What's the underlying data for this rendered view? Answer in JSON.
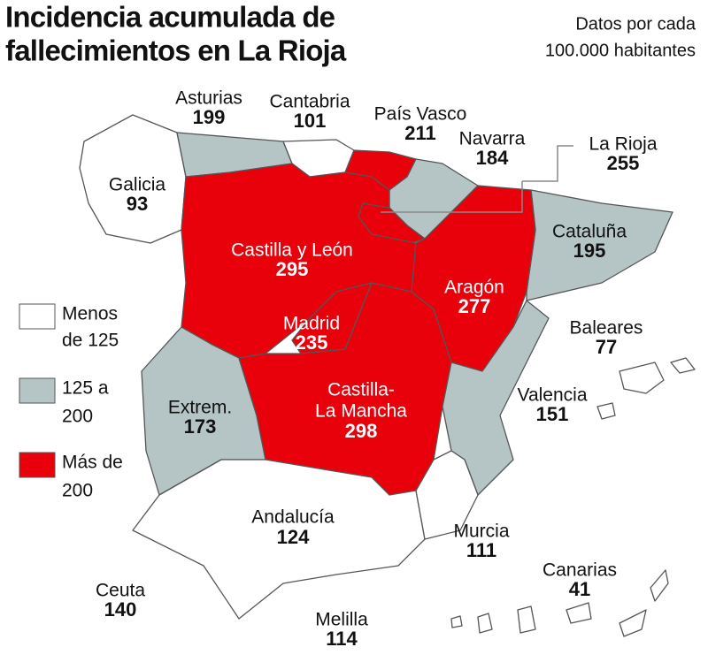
{
  "title": [
    "Incidencia acumulada de",
    "fallecimientos  en La Rioja"
  ],
  "subtitle": [
    "Datos por cada",
    "100.000 habitantes"
  ],
  "legend": [
    {
      "lines": [
        "Menos",
        "de 125"
      ],
      "color": "#ffffff"
    },
    {
      "lines": [
        "125 a",
        "200"
      ],
      "color": "#b5c5c5"
    },
    {
      "lines": [
        "Más de",
        "200"
      ],
      "color": "#e8000b"
    }
  ],
  "regions": [
    {
      "name": "Galicia",
      "value": 93,
      "color": "#ffffff"
    },
    {
      "name": "Asturias",
      "value": 199,
      "color": "#b5c5c5"
    },
    {
      "name": "Cantabria",
      "value": 101,
      "color": "#ffffff"
    },
    {
      "name": "País Vasco",
      "value": 211,
      "color": "#e8000b"
    },
    {
      "name": "Navarra",
      "value": 184,
      "color": "#b5c5c5"
    },
    {
      "name": "La Rioja",
      "value": 255,
      "color": "#e8000b"
    },
    {
      "name": "Castilla y León",
      "value": 295,
      "color": "#e8000b"
    },
    {
      "name": "Cataluña",
      "value": 195,
      "color": "#b5c5c5"
    },
    {
      "name": "Aragón",
      "value": 277,
      "color": "#e8000b"
    },
    {
      "name": "Madrid",
      "value": 235,
      "color": "#e8000b"
    },
    {
      "name": "Baleares",
      "value": 77,
      "color": "#ffffff"
    },
    {
      "name": "Extrem.",
      "value": 173,
      "color": "#b5c5c5"
    },
    {
      "name": [
        "Castilla-",
        "La Mancha"
      ],
      "value": 298,
      "color": "#e8000b"
    },
    {
      "name": "Valencia",
      "value": 151,
      "color": "#b5c5c5"
    },
    {
      "name": "Andalucía",
      "value": 124,
      "color": "#ffffff"
    },
    {
      "name": "Murcia",
      "value": 111,
      "color": "#ffffff"
    },
    {
      "name": "Canarias",
      "value": 41,
      "color": "#ffffff"
    },
    {
      "name": "Ceuta",
      "value": 140
    },
    {
      "name": "Melilla",
      "value": 114
    }
  ]
}
